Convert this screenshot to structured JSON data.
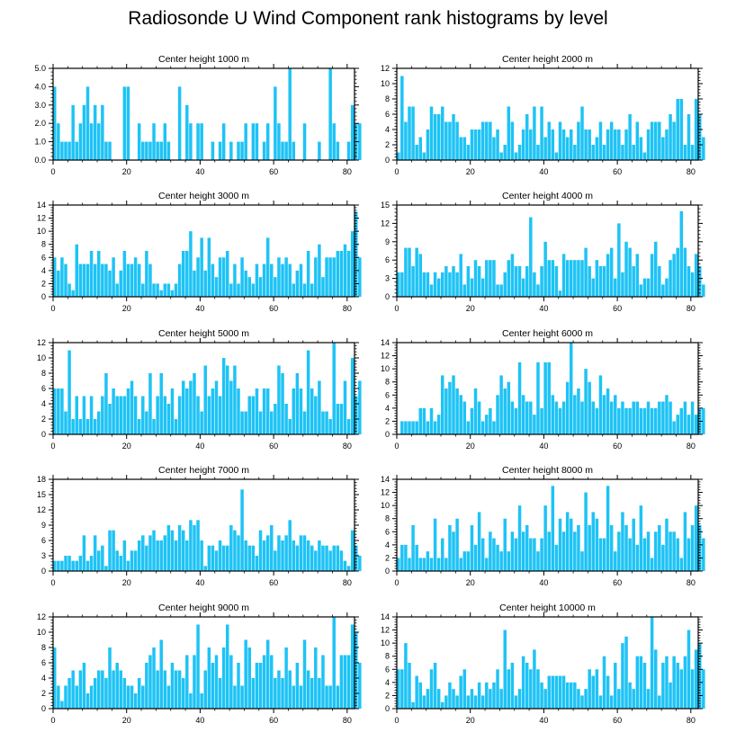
{
  "figure_title": "Radiosonde U Wind Component rank histograms by level",
  "colors": {
    "bar": "#1ec3f5",
    "bar_edge": "#ffffff",
    "axis": "#000000"
  },
  "chart_data": [
    {
      "type": "bar",
      "title": "Center height 1000 m",
      "xlim": [
        0,
        82
      ],
      "ylim": [
        0,
        5
      ],
      "yticks": [
        0,
        1,
        2,
        3,
        4,
        5
      ],
      "ytick_labels": [
        "0.0",
        "1.0",
        "2.0",
        "3.0",
        "4.0",
        "5.0"
      ],
      "xticks": [
        0,
        20,
        40,
        60,
        80
      ],
      "values": [
        4,
        2,
        1,
        1,
        1,
        3,
        1,
        2,
        3,
        4,
        2,
        3,
        2,
        3,
        1,
        1,
        0,
        0,
        0,
        4,
        4,
        0,
        0,
        2,
        1,
        1,
        1,
        2,
        1,
        1,
        2,
        1,
        0,
        0,
        4,
        0,
        3,
        2,
        0,
        2,
        2,
        0,
        0,
        1,
        0,
        1,
        2,
        0,
        1,
        0,
        1,
        1,
        2,
        0,
        2,
        2,
        0,
        1,
        2,
        0,
        4,
        2,
        1,
        1,
        5,
        1,
        0,
        0,
        2,
        0,
        0,
        0,
        1,
        0,
        0,
        5,
        2,
        1,
        0,
        0,
        1,
        3,
        2,
        2
      ]
    },
    {
      "type": "bar",
      "title": "Center height 2000 m",
      "xlim": [
        0,
        82
      ],
      "ylim": [
        0,
        12
      ],
      "yticks": [
        0,
        2,
        4,
        6,
        8,
        10,
        12
      ],
      "ytick_labels": [
        "0",
        "2",
        "4",
        "6",
        "8",
        "10",
        "12"
      ],
      "xticks": [
        0,
        20,
        40,
        60,
        80
      ],
      "values": [
        1,
        11,
        5,
        7,
        7,
        2,
        3,
        1,
        4,
        7,
        6,
        6,
        7,
        5,
        5,
        6,
        5,
        3,
        3,
        2,
        4,
        4,
        4,
        5,
        5,
        5,
        3,
        4,
        1,
        2,
        7,
        5,
        1,
        2,
        4,
        6,
        4,
        7,
        2,
        7,
        3,
        5,
        4,
        1,
        5,
        4,
        3,
        4,
        2,
        5,
        7,
        4,
        4,
        2,
        3,
        5,
        2,
        4,
        5,
        4,
        4,
        2,
        4,
        6,
        2,
        5,
        3,
        1,
        4,
        5,
        5,
        5,
        3,
        4,
        6,
        5,
        8,
        8,
        2,
        6,
        2,
        8,
        6,
        3
      ]
    },
    {
      "type": "bar",
      "title": "Center height 3000 m",
      "xlim": [
        0,
        82
      ],
      "ylim": [
        0,
        14
      ],
      "yticks": [
        0,
        2,
        4,
        6,
        8,
        10,
        12,
        14
      ],
      "ytick_labels": [
        "0",
        "2",
        "4",
        "6",
        "8",
        "10",
        "12",
        "14"
      ],
      "xticks": [
        0,
        20,
        40,
        60,
        80
      ],
      "values": [
        6,
        4,
        6,
        5,
        2,
        1,
        8,
        5,
        5,
        5,
        7,
        5,
        7,
        5,
        5,
        4,
        6,
        2,
        4,
        7,
        5,
        5,
        6,
        5,
        2,
        7,
        5,
        2,
        2,
        1,
        2,
        2,
        1,
        2,
        5,
        7,
        7,
        10,
        4,
        6,
        9,
        4,
        9,
        5,
        3,
        6,
        6,
        7,
        2,
        5,
        2,
        6,
        4,
        3,
        2,
        5,
        3,
        5,
        9,
        5,
        3,
        6,
        5,
        6,
        5,
        2,
        4,
        5,
        2,
        7,
        2,
        6,
        8,
        3,
        6,
        6,
        6,
        7,
        7,
        8,
        7,
        10,
        13,
        6
      ]
    },
    {
      "type": "bar",
      "title": "Center height 4000 m",
      "xlim": [
        0,
        82
      ],
      "ylim": [
        0,
        15
      ],
      "yticks": [
        0,
        3,
        6,
        9,
        12,
        15
      ],
      "ytick_labels": [
        "0",
        "3",
        "6",
        "9",
        "12",
        "15"
      ],
      "xticks": [
        0,
        20,
        40,
        60,
        80
      ],
      "values": [
        4,
        4,
        8,
        8,
        5,
        8,
        7,
        4,
        4,
        2,
        4,
        3,
        4,
        5,
        4,
        5,
        4,
        7,
        2,
        5,
        3,
        6,
        5,
        3,
        6,
        6,
        6,
        2,
        2,
        4,
        6,
        7,
        5,
        5,
        3,
        5,
        13,
        4,
        2,
        5,
        9,
        6,
        6,
        5,
        1,
        7,
        6,
        6,
        6,
        6,
        6,
        8,
        5,
        3,
        6,
        5,
        5,
        7,
        8,
        3,
        12,
        4,
        9,
        8,
        5,
        7,
        2,
        3,
        3,
        7,
        9,
        5,
        2,
        3,
        6,
        7,
        8,
        14,
        8,
        5,
        4,
        7,
        5,
        2
      ]
    },
    {
      "type": "bar",
      "title": "Center height 5000 m",
      "xlim": [
        0,
        82
      ],
      "ylim": [
        0,
        12
      ],
      "yticks": [
        0,
        2,
        4,
        6,
        8,
        10,
        12
      ],
      "ytick_labels": [
        "0",
        "2",
        "4",
        "6",
        "8",
        "10",
        "12"
      ],
      "xticks": [
        0,
        20,
        40,
        60,
        80
      ],
      "values": [
        6,
        6,
        6,
        3,
        11,
        2,
        5,
        2,
        5,
        2,
        5,
        2,
        3,
        5,
        8,
        4,
        6,
        5,
        5,
        5,
        6,
        7,
        5,
        2,
        5,
        3,
        8,
        2,
        5,
        8,
        5,
        4,
        6,
        2,
        5,
        7,
        6,
        7,
        8,
        5,
        3,
        9,
        5,
        6,
        7,
        5,
        10,
        9,
        7,
        9,
        6,
        3,
        3,
        5,
        5,
        6,
        3,
        6,
        6,
        3,
        4,
        9,
        8,
        4,
        2,
        6,
        8,
        6,
        3,
        11,
        6,
        5,
        7,
        3,
        3,
        2,
        12,
        4,
        4,
        7,
        2,
        10,
        5,
        7
      ]
    },
    {
      "type": "bar",
      "title": "Center height 6000 m",
      "xlim": [
        0,
        82
      ],
      "ylim": [
        0,
        14
      ],
      "yticks": [
        0,
        2,
        4,
        6,
        8,
        10,
        12,
        14
      ],
      "ytick_labels": [
        "0",
        "2",
        "4",
        "6",
        "8",
        "10",
        "12",
        "14"
      ],
      "xticks": [
        0,
        20,
        40,
        60,
        80
      ],
      "values": [
        0,
        2,
        2,
        2,
        2,
        2,
        4,
        4,
        2,
        4,
        2,
        3,
        9,
        7,
        8,
        9,
        7,
        6,
        5,
        2,
        4,
        7,
        5,
        2,
        3,
        4,
        2,
        6,
        9,
        7,
        8,
        5,
        4,
        11,
        6,
        5,
        5,
        3,
        11,
        4,
        11,
        11,
        6,
        5,
        4,
        5,
        8,
        14,
        6,
        7,
        5,
        10,
        8,
        5,
        4,
        9,
        6,
        7,
        5,
        6,
        4,
        5,
        4,
        4,
        5,
        5,
        4,
        4,
        5,
        4,
        4,
        5,
        5,
        6,
        5,
        2,
        3,
        4,
        5,
        3,
        5,
        3,
        4,
        4
      ]
    },
    {
      "type": "bar",
      "title": "Center height 7000 m",
      "xlim": [
        0,
        82
      ],
      "ylim": [
        0,
        18
      ],
      "yticks": [
        0,
        3,
        6,
        9,
        12,
        15,
        18
      ],
      "ytick_labels": [
        "0",
        "3",
        "6",
        "9",
        "12",
        "15",
        "18"
      ],
      "xticks": [
        0,
        20,
        40,
        60,
        80
      ],
      "values": [
        2,
        2,
        2,
        3,
        3,
        2,
        2,
        3,
        7,
        2,
        3,
        7,
        4,
        5,
        1,
        8,
        8,
        4,
        3,
        6,
        2,
        4,
        4,
        6,
        7,
        5,
        7,
        8,
        6,
        6,
        7,
        9,
        8,
        6,
        9,
        8,
        6,
        10,
        9,
        10,
        6,
        1,
        5,
        5,
        4,
        6,
        5,
        5,
        9,
        8,
        7,
        16,
        6,
        5,
        5,
        3,
        8,
        6,
        7,
        9,
        4,
        7,
        6,
        7,
        10,
        6,
        5,
        7,
        7,
        6,
        5,
        4,
        6,
        5,
        5,
        4,
        5,
        5,
        4,
        2,
        1,
        8,
        5,
        3
      ]
    },
    {
      "type": "bar",
      "title": "Center height 8000 m",
      "xlim": [
        0,
        82
      ],
      "ylim": [
        0,
        14
      ],
      "yticks": [
        0,
        2,
        4,
        6,
        8,
        10,
        12,
        14
      ],
      "ytick_labels": [
        "0",
        "2",
        "4",
        "6",
        "8",
        "10",
        "12",
        "14"
      ],
      "xticks": [
        0,
        20,
        40,
        60,
        80
      ],
      "values": [
        2,
        4,
        4,
        2,
        7,
        4,
        2,
        2,
        3,
        2,
        8,
        2,
        5,
        2,
        7,
        6,
        8,
        2,
        3,
        3,
        7,
        4,
        9,
        5,
        2,
        6,
        5,
        4,
        3,
        8,
        3,
        6,
        5,
        10,
        6,
        7,
        5,
        5,
        3,
        5,
        10,
        6,
        13,
        4,
        8,
        6,
        9,
        8,
        6,
        7,
        3,
        12,
        7,
        9,
        8,
        5,
        5,
        13,
        7,
        3,
        6,
        9,
        7,
        5,
        8,
        4,
        10,
        5,
        6,
        2,
        6,
        7,
        4,
        8,
        6,
        6,
        5,
        2,
        9,
        5,
        7,
        10,
        7,
        5
      ]
    },
    {
      "type": "bar",
      "title": "Center height 9000 m",
      "xlim": [
        0,
        82
      ],
      "ylim": [
        0,
        12
      ],
      "yticks": [
        0,
        2,
        4,
        6,
        8,
        10,
        12
      ],
      "ytick_labels": [
        "0",
        "2",
        "4",
        "6",
        "8",
        "10",
        "12"
      ],
      "xticks": [
        0,
        20,
        40,
        60,
        80
      ],
      "values": [
        8,
        3,
        1,
        3,
        4,
        5,
        3,
        5,
        6,
        2,
        3,
        4,
        5,
        5,
        4,
        8,
        5,
        6,
        5,
        4,
        3,
        3,
        2,
        4,
        3,
        6,
        7,
        8,
        5,
        9,
        5,
        3,
        6,
        5,
        5,
        4,
        7,
        2,
        7,
        11,
        2,
        5,
        8,
        6,
        7,
        4,
        8,
        11,
        7,
        3,
        6,
        3,
        9,
        8,
        4,
        6,
        6,
        7,
        9,
        7,
        4,
        5,
        4,
        8,
        5,
        3,
        6,
        3,
        9,
        5,
        4,
        8,
        4,
        7,
        3,
        3,
        12,
        3,
        7,
        7,
        7,
        11,
        10,
        6
      ]
    },
    {
      "type": "bar",
      "title": "Center height 10000 m",
      "xlim": [
        0,
        82
      ],
      "ylim": [
        0,
        14
      ],
      "yticks": [
        0,
        2,
        4,
        6,
        8,
        10,
        12,
        14
      ],
      "ytick_labels": [
        "0",
        "2",
        "4",
        "6",
        "8",
        "10",
        "12",
        "14"
      ],
      "xticks": [
        0,
        20,
        40,
        60,
        80
      ],
      "values": [
        6,
        6,
        10,
        7,
        1,
        5,
        4,
        2,
        3,
        6,
        7,
        3,
        1,
        2,
        4,
        3,
        2,
        5,
        6,
        2,
        3,
        2,
        4,
        2,
        4,
        3,
        4,
        6,
        3,
        12,
        6,
        7,
        2,
        3,
        8,
        7,
        6,
        9,
        6,
        4,
        3,
        5,
        5,
        5,
        5,
        5,
        4,
        4,
        4,
        3,
        2,
        3,
        6,
        5,
        6,
        2,
        8,
        5,
        2,
        7,
        3,
        10,
        11,
        4,
        3,
        8,
        8,
        7,
        3,
        14,
        9,
        2,
        7,
        8,
        4,
        8,
        7,
        6,
        8,
        12,
        6,
        9,
        10,
        6
      ]
    }
  ]
}
